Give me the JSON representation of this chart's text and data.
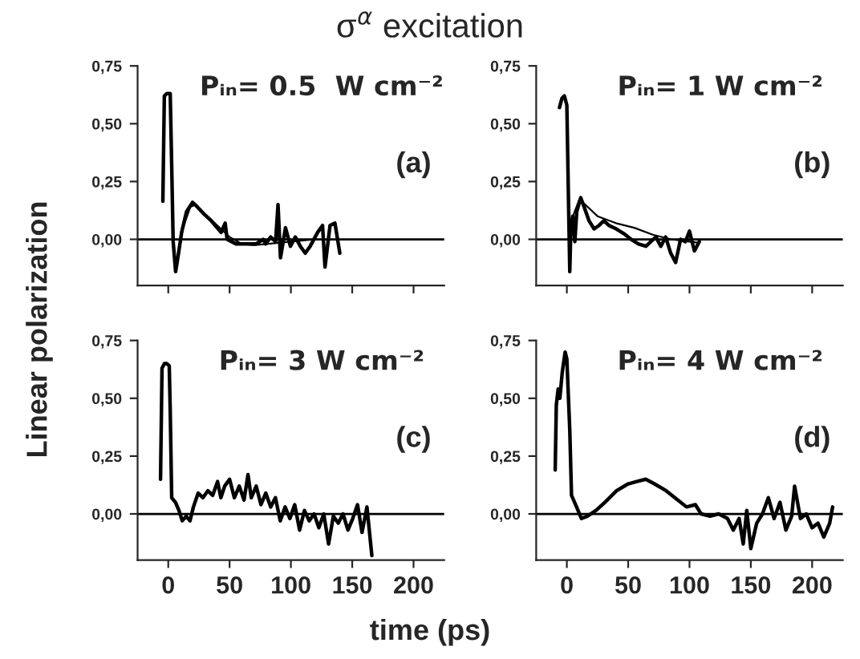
{
  "chart_data": [
    {
      "type": "line",
      "title": "σ$^{α}$ excitation",
      "ylabel": "Linear polarization",
      "xlim": [
        -25,
        225
      ],
      "ylim": [
        -0.2,
        0.75
      ],
      "xticks": [
        0,
        50,
        100,
        150,
        200
      ],
      "yticks": [
        {
          "value": 0,
          "label": "0,00"
        },
        {
          "value": 0.25,
          "label": "0,25"
        },
        {
          "value": 0.5,
          "label": "0,50"
        },
        {
          "value": 0.75,
          "label": "0,75"
        }
      ],
      "tick_labels": "y",
      "ref_lines": [
        {
          "axis": "y",
          "value": 0,
          "color": "#000000"
        }
      ],
      "annotations": [
        "Pᵢₙ= 0.5  W cm⁻²",
        "(a)"
      ],
      "series": [
        {
          "color": "#000000",
          "x": [
            -4.4,
            -3.2,
            -1.2,
            1.6,
            2.8,
            4.0,
            6.0,
            8.1,
            10.9,
            14.9,
            19.8,
            23.8,
            29.0,
            35.1,
            43.1,
            46.4,
            48.0,
            55.2,
            63.3,
            71.4,
            77.4,
            79.4,
            83.5,
            87.5,
            89.5,
            91.5,
            95.6,
            99.6,
            103.6,
            107.7,
            111.7,
            115.7,
            121.8,
            125.8,
            127.8,
            131.9,
            135.9,
            139.9
          ],
          "values": [
            0.165,
            0.62,
            0.63,
            0.63,
            0.32,
            -0.01,
            -0.14,
            -0.07,
            0.03,
            0.12,
            0.16,
            0.14,
            0.11,
            0.08,
            0.03,
            0.07,
            0,
            -0.02,
            -0.02,
            -0.02,
            0,
            -0.02,
            0.01,
            -0.01,
            0.15,
            -0.08,
            0.05,
            -0.03,
            0.01,
            -0.03,
            -0.06,
            -0.03,
            0.03,
            0.06,
            -0.12,
            0.06,
            0.07,
            -0.06
          ]
        },
        {
          "color": "#000000",
          "x": [
            8,
            12,
            18,
            22,
            30,
            40,
            50,
            60,
            70,
            80,
            100,
            120
          ],
          "values": [
            -0.08,
            0.05,
            0.14,
            0.15,
            0.11,
            0.06,
            0.01,
            -0.02,
            -0.025,
            -0.02,
            -0.01,
            0
          ]
        }
      ]
    },
    {
      "type": "line",
      "xlim": [
        -25,
        225
      ],
      "ylim": [
        -0.2,
        0.75
      ],
      "xticks": [
        0,
        50,
        100,
        150,
        200
      ],
      "yticks": [
        {
          "value": 0,
          "label": "0,00"
        },
        {
          "value": 0.25,
          "label": "0,25"
        },
        {
          "value": 0.5,
          "label": "0,50"
        },
        {
          "value": 0.75,
          "label": "0,75"
        }
      ],
      "tick_labels": "y",
      "ref_lines": [
        {
          "axis": "y",
          "value": 0,
          "color": "#000000"
        }
      ],
      "annotations": [
        "Pᵢₙ= 1 W cm⁻²",
        "(b)"
      ],
      "series": [
        {
          "color": "#000000",
          "x": [
            -6,
            -4,
            -2,
            0,
            1.2,
            2.4,
            3.2,
            4.8,
            6.5,
            8.1,
            11.3,
            14.1,
            18.1,
            22.2,
            26.2,
            30.2,
            34.3,
            40.3,
            46.4,
            52.4,
            58.5,
            64.5,
            68.5,
            72.6,
            76.6,
            80.6,
            84.7,
            88.7,
            92.7,
            96.7,
            100,
            104,
            108
          ],
          "values": [
            0.57,
            0.61,
            0.62,
            0.58,
            0.21,
            -0.14,
            0.035,
            0.1,
            -0.01,
            0.12,
            0.18,
            0.14,
            0.08,
            0.045,
            0.06,
            0.08,
            0.06,
            0.045,
            0.025,
            0,
            -0.02,
            -0.03,
            -0.01,
            0.01,
            -0.03,
            0.01,
            -0.06,
            -0.1,
            0,
            -0.01,
            0.035,
            -0.05,
            -0.01
          ]
        },
        {
          "color": "#000000",
          "x": [
            5,
            10,
            15,
            25,
            40,
            55,
            70,
            85,
            100,
            108
          ],
          "values": [
            0.1,
            0.17,
            0.15,
            0.1,
            0.07,
            0.05,
            0.02,
            0,
            -0.01,
            -0.015
          ]
        }
      ]
    },
    {
      "type": "line",
      "xlabel": "time (ps)",
      "xlim": [
        -25,
        225
      ],
      "ylim": [
        -0.2,
        0.75
      ],
      "xticks": [
        0,
        50,
        100,
        150,
        200
      ],
      "yticks": [
        {
          "value": 0,
          "label": "0,00"
        },
        {
          "value": 0.25,
          "label": "0,25"
        },
        {
          "value": 0.5,
          "label": "0,50"
        },
        {
          "value": 0.75,
          "label": "0,75"
        }
      ],
      "ref_lines": [
        {
          "axis": "y",
          "value": 0,
          "color": "#000000"
        }
      ],
      "annotations": [
        "Pᵢₙ= 3 W cm⁻²",
        "(c)"
      ],
      "series": [
        {
          "color": "#000000",
          "x": [
            -6.3,
            -5.1,
            -3.1,
            -1.2,
            0.8,
            1.6,
            2.8,
            5.9,
            8.7,
            11.4,
            14.6,
            17.7,
            20.5,
            24.4,
            28.3,
            32.3,
            36.2,
            40.2,
            42.9,
            46,
            50,
            53.9,
            57.9,
            61.8,
            65,
            67.7,
            71.7,
            75.6,
            79.5,
            83.5,
            87.4,
            91.3,
            95.3,
            99.2,
            103.1,
            107.1,
            111,
            114.9,
            118.9,
            122.8,
            126.8,
            130.7,
            134.6,
            138.6,
            142.5,
            146.5,
            150.4,
            154.3,
            158,
            162,
            166
          ],
          "values": [
            0.15,
            0.63,
            0.65,
            0.65,
            0.64,
            0.45,
            0.07,
            0.05,
            0.015,
            -0.03,
            -0.01,
            -0.03,
            0.03,
            0.09,
            0.07,
            0.1,
            0.08,
            0.14,
            0.07,
            0.12,
            0.15,
            0.07,
            0.12,
            0.06,
            0.17,
            0.07,
            0.12,
            0.04,
            0.09,
            0.03,
            0.07,
            -0.03,
            0.03,
            -0.02,
            0.04,
            -0.07,
            0.015,
            -0.03,
            0,
            -0.06,
            0,
            -0.13,
            -0.01,
            -0.04,
            0,
            -0.07,
            -0.02,
            0.04,
            -0.08,
            0.03,
            -0.18
          ]
        }
      ]
    },
    {
      "type": "line",
      "xlim": [
        -25,
        225
      ],
      "ylim": [
        -0.2,
        0.75
      ],
      "xticks": [
        0,
        50,
        100,
        150,
        200
      ],
      "yticks": [
        {
          "value": 0,
          "label": "0,00"
        },
        {
          "value": 0.25,
          "label": "0,25"
        },
        {
          "value": 0.5,
          "label": "0,50"
        },
        {
          "value": 0.75,
          "label": "0,75"
        }
      ],
      "ref_lines": [
        {
          "axis": "y",
          "value": 0,
          "color": "#000000"
        }
      ],
      "annotations": [
        "Pᵢₙ= 4 W cm⁻²",
        "(d)"
      ],
      "series": [
        {
          "color": "#000000",
          "x": [
            -9.5,
            -8.6,
            -7.1,
            -5.7,
            -3.8,
            -1.4,
            0,
            2.4,
            3.8,
            7.1,
            11.9,
            16.7,
            23.8,
            31,
            40.5,
            50,
            57,
            64.3,
            71.4,
            81,
            90.5,
            97.6,
            104.8,
            109.5,
            116.7,
            123.8,
            131,
            135.7,
            140.5,
            143.8,
            146.7,
            150,
            154.8,
            159.5,
            164.3,
            169,
            173.8,
            178.6,
            183.3,
            185.7,
            190.5,
            195.2,
            200,
            204.8,
            209.5,
            214.3,
            216.7
          ],
          "values": [
            0.19,
            0.47,
            0.54,
            0.5,
            0.61,
            0.7,
            0.67,
            0.36,
            0.08,
            0.04,
            -0.02,
            -0.01,
            0.015,
            0.05,
            0.1,
            0.13,
            0.14,
            0.15,
            0.13,
            0.1,
            0.06,
            0.03,
            0.04,
            0,
            -0.01,
            0,
            -0.02,
            -0.07,
            -0.02,
            -0.13,
            0.015,
            -0.15,
            -0.04,
            0,
            0.07,
            -0.02,
            0.05,
            -0.07,
            -0.01,
            0.12,
            -0.02,
            0,
            -0.06,
            -0.04,
            -0.1,
            -0.04,
            0.03
          ]
        }
      ]
    }
  ]
}
